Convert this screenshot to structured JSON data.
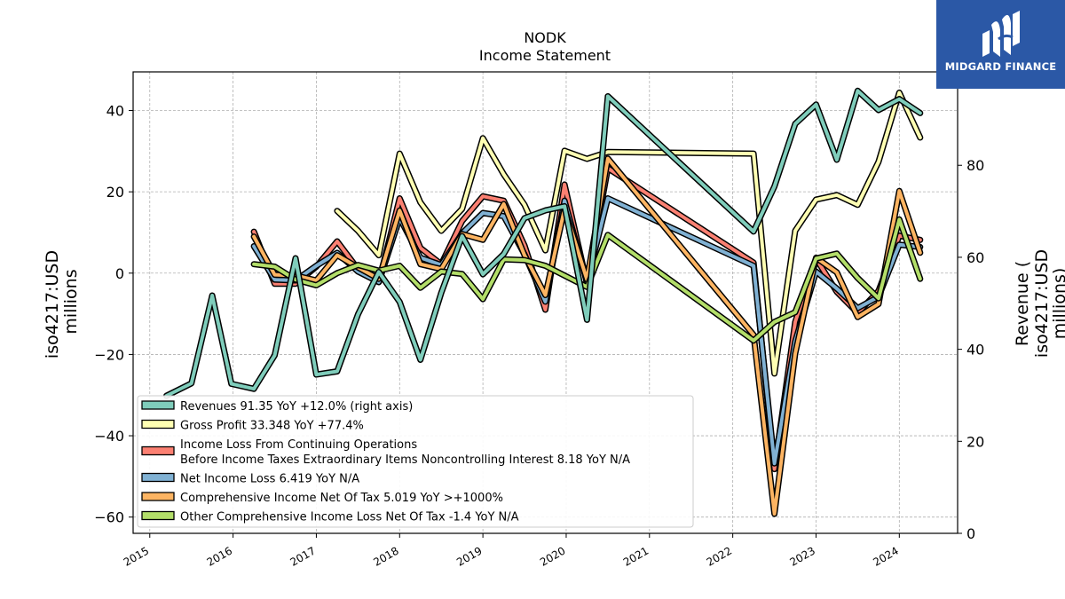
{
  "brand": {
    "name": "MIDGARD FINANCE",
    "bg_color": "#2b58a6"
  },
  "chart_data": {
    "type": "line",
    "title": "NODK",
    "subtitle": "Income Statement",
    "ylabel_left": [
      "iso4217:USD",
      "millions"
    ],
    "ylabel_right": [
      "Revenue (",
      "iso4217:USD",
      "millions)"
    ],
    "ylim_left": [
      -64,
      49.5
    ],
    "ylim_right": [
      0,
      100.3
    ],
    "yticks_left": [
      -60,
      -40,
      -20,
      0,
      20,
      40
    ],
    "yticks_right": [
      0,
      20,
      40,
      60,
      80
    ],
    "xlim": [
      2014.8,
      2024.7
    ],
    "xticks": [
      2015,
      2016,
      2017,
      2018,
      2019,
      2020,
      2021,
      2022,
      2023,
      2024
    ],
    "grid": true,
    "legend_position": "lower-left",
    "series": [
      {
        "name": "Revenues  91.35 YoY +12.0% (right axis)",
        "axis": "right",
        "color": "#7fcdbb",
        "x": [
          2015.2,
          2015.5,
          2015.75,
          2015.98,
          2016.25,
          2016.5,
          2016.75,
          2017.0,
          2017.25,
          2017.5,
          2017.75,
          2018.0,
          2018.25,
          2018.5,
          2018.75,
          2019.0,
          2019.25,
          2019.5,
          2019.75,
          2019.98,
          2020.25,
          2020.5,
          2022.25,
          2022.5,
          2022.75,
          2023.0,
          2023.25,
          2023.5,
          2023.75,
          2024.0,
          2024.25
        ],
        "values": [
          29.9,
          32.6,
          51.7,
          32.5,
          31.4,
          38.7,
          59.8,
          34.5,
          35.2,
          47.6,
          56.8,
          50.3,
          37.7,
          52.3,
          64.6,
          56.3,
          60.7,
          68.5,
          70.2,
          71.1,
          46.4,
          95.0,
          65.6,
          75.4,
          89.0,
          93.2,
          81.2,
          96.2,
          92.0,
          94.4,
          91.35
        ]
      },
      {
        "name": "Gross Profit  33.348 YoY +77.4%",
        "axis": "left",
        "color": "#ffffb3",
        "x": [
          2017.25,
          2017.5,
          2017.75,
          2018.0,
          2018.25,
          2018.5,
          2018.75,
          2019.0,
          2019.25,
          2019.5,
          2019.75,
          2019.98,
          2020.25,
          2020.5,
          2022.25,
          2022.5,
          2022.75,
          2023.0,
          2023.25,
          2023.5,
          2023.75,
          2024.0,
          2024.25
        ],
        "values": [
          15.3,
          10.4,
          4.4,
          29.4,
          17.4,
          10.4,
          15.8,
          33.2,
          24.3,
          16.8,
          5.6,
          30.1,
          28.1,
          29.8,
          29.4,
          -24.7,
          10.4,
          18.1,
          19.2,
          16.8,
          27.4,
          44.4,
          33.348
        ]
      },
      {
        "name": "Income Loss From Continuing Operations Before Income Taxes Extraordinary Items Noncontrolling Interest  8.18 YoY N/A",
        "legend_lines": [
          "Income Loss From Continuing Operations",
          "Before Income Taxes Extraordinary Items Noncontrolling Interest  8.18 YoY N/A"
        ],
        "axis": "left",
        "color": "#fb8072",
        "x": [
          2016.25,
          2016.5,
          2016.75,
          2017.0,
          2017.25,
          2017.5,
          2017.75,
          2018.0,
          2018.25,
          2018.5,
          2018.75,
          2019.0,
          2019.25,
          2019.5,
          2019.75,
          2019.98,
          2020.25,
          2020.5,
          2022.25,
          2022.5,
          2022.75,
          2023.0,
          2023.25,
          2023.5,
          2023.75,
          2024.0,
          2024.25
        ],
        "values": [
          10.2,
          -2.6,
          -2.6,
          1.6,
          7.8,
          1.0,
          -2.2,
          18.4,
          6.2,
          2.2,
          12.8,
          18.9,
          17.8,
          6.8,
          -9.0,
          21.8,
          -2.6,
          25.8,
          2.6,
          -48.2,
          -12.0,
          3.6,
          -4.6,
          -9.8,
          -4.4,
          9.2,
          8.18
        ]
      },
      {
        "name": "Net Income Loss  6.419 YoY N/A",
        "axis": "left",
        "color": "#80b1d3",
        "x": [
          2016.25,
          2016.5,
          2016.75,
          2017.0,
          2017.25,
          2017.5,
          2017.75,
          2018.0,
          2018.25,
          2018.5,
          2018.75,
          2019.0,
          2019.25,
          2019.5,
          2019.75,
          2019.98,
          2020.25,
          2020.5,
          2022.25,
          2022.5,
          2022.75,
          2023.0,
          2023.25,
          2023.5,
          2023.75,
          2024.0,
          2024.25
        ],
        "values": [
          6.6,
          -1.6,
          -1.8,
          1.8,
          5.0,
          0.4,
          -2.2,
          13.6,
          3.8,
          2.0,
          9.8,
          14.8,
          14.0,
          4.6,
          -7.0,
          17.8,
          -2.2,
          18.4,
          1.8,
          -46.8,
          -16.8,
          0.4,
          -3.8,
          -8.6,
          -5.8,
          7.0,
          6.419
        ]
      },
      {
        "name": "Comprehensive Income Net Of Tax  5.019 YoY >+1000%",
        "axis": "left",
        "color": "#fdb462",
        "x": [
          2016.25,
          2016.5,
          2016.75,
          2017.0,
          2017.25,
          2017.5,
          2017.75,
          2018.0,
          2018.25,
          2018.5,
          2018.75,
          2019.0,
          2019.25,
          2019.5,
          2019.75,
          2019.98,
          2020.25,
          2020.5,
          2022.25,
          2022.5,
          2022.75,
          2023.0,
          2023.25,
          2023.5,
          2023.75,
          2024.0,
          2024.25
        ],
        "values": [
          9.0,
          -0.4,
          -0.6,
          -1.8,
          4.4,
          1.4,
          -1.4,
          15.4,
          2.2,
          1.0,
          9.6,
          8.2,
          17.0,
          4.4,
          -5.4,
          15.8,
          -1.6,
          28.2,
          -15.2,
          -59.2,
          -19.8,
          3.8,
          0.2,
          -10.8,
          -7.6,
          20.2,
          5.019
        ]
      },
      {
        "name": "Other Comprehensive Income Loss Net Of Tax  -1.4 YoY N/A",
        "axis": "left",
        "color": "#b3de69",
        "x": [
          2016.25,
          2016.5,
          2016.75,
          2017.0,
          2017.25,
          2017.5,
          2017.75,
          2018.0,
          2018.25,
          2018.5,
          2018.75,
          2019.0,
          2019.25,
          2019.5,
          2019.75,
          2019.98,
          2020.25,
          2020.5,
          2022.25,
          2022.5,
          2022.75,
          2023.0,
          2023.25,
          2023.5,
          2023.75,
          2024.0,
          2024.25
        ],
        "values": [
          2.2,
          1.6,
          -1.6,
          -3.0,
          0.0,
          2.0,
          0.6,
          1.8,
          -3.6,
          0.4,
          -0.2,
          -6.4,
          3.4,
          3.2,
          1.8,
          -0.6,
          -3.4,
          9.4,
          -16.6,
          -12.0,
          -9.6,
          3.6,
          4.8,
          -1.2,
          -6.2,
          13.2,
          -1.4
        ]
      }
    ]
  }
}
